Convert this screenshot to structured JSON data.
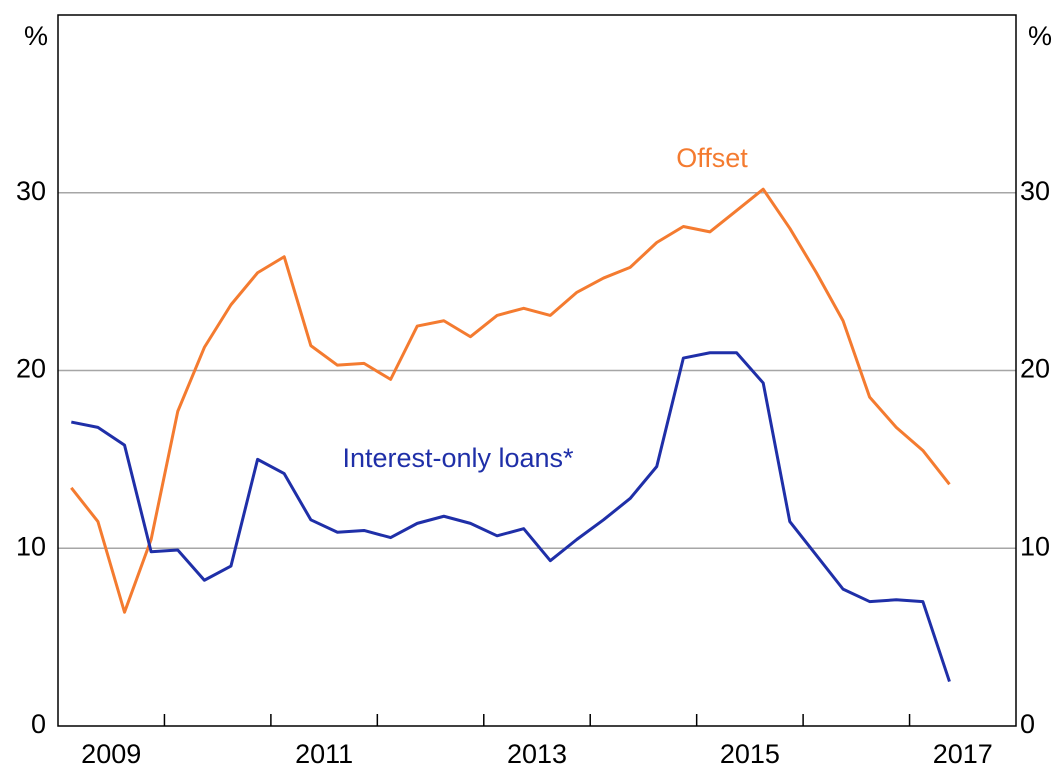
{
  "chart_data": {
    "type": "line",
    "y_label": "%",
    "y2_label": "%",
    "x": [
      2009.125,
      2009.375,
      2009.625,
      2009.875,
      2010.125,
      2010.375,
      2010.625,
      2010.875,
      2011.125,
      2011.375,
      2011.625,
      2011.875,
      2012.125,
      2012.375,
      2012.625,
      2012.875,
      2013.125,
      2013.375,
      2013.625,
      2013.875,
      2014.125,
      2014.375,
      2014.625,
      2014.875,
      2015.125,
      2015.375,
      2015.625,
      2015.875,
      2016.125,
      2016.375,
      2016.625,
      2016.875,
      2017.125,
      2017.375
    ],
    "series": [
      {
        "name": "Offset",
        "color": "#f47b30",
        "values": [
          13.4,
          11.5,
          6.4,
          10.5,
          17.7,
          21.3,
          23.7,
          25.5,
          26.4,
          21.4,
          20.3,
          20.4,
          19.5,
          22.5,
          22.8,
          21.9,
          23.1,
          23.5,
          23.1,
          24.4,
          25.2,
          25.8,
          27.2,
          28.1,
          27.8,
          29.0,
          30.2,
          28.0,
          25.5,
          22.8,
          18.5,
          16.8,
          15.5,
          13.6
        ]
      },
      {
        "name": "Interest-only loans*",
        "color": "#1f2fa8",
        "values": [
          17.1,
          16.8,
          15.8,
          9.8,
          9.9,
          8.2,
          9.0,
          15.0,
          14.2,
          11.6,
          10.9,
          11.0,
          10.6,
          11.4,
          11.8,
          11.4,
          10.7,
          11.1,
          9.3,
          10.5,
          11.6,
          12.8,
          14.6,
          20.7,
          21.0,
          21.0,
          19.3,
          11.5,
          9.6,
          7.7,
          7.0,
          7.1,
          7.0,
          2.5
        ]
      }
    ],
    "xlim": [
      2009,
      2018
    ],
    "xticks": [
      {
        "value": 2009.5,
        "label": "2009"
      },
      {
        "value": 2011.5,
        "label": "2011"
      },
      {
        "value": 2013.5,
        "label": "2013"
      },
      {
        "value": 2015.5,
        "label": "2015"
      },
      {
        "value": 2017.5,
        "label": "2017"
      }
    ],
    "xminorticks": [
      2010,
      2011,
      2012,
      2013,
      2014,
      2015,
      2016,
      2017
    ],
    "ylim": [
      0,
      40
    ],
    "yticks": [
      0,
      10,
      20,
      30
    ],
    "y2lim": [
      0,
      40
    ],
    "y2ticks": [
      0,
      10,
      20,
      30
    ],
    "grid": true
  }
}
